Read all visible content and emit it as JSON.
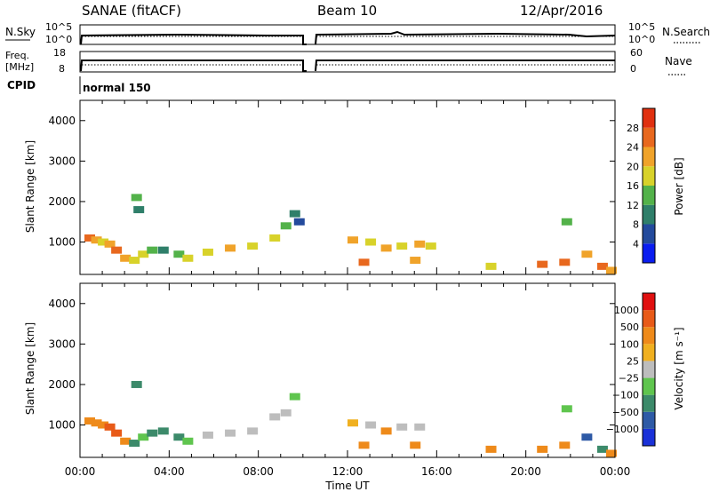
{
  "header": {
    "station": "SANAE (fitACF)",
    "beam": "Beam 10",
    "date": "12/Apr/2016"
  },
  "sky_panel": {
    "left_label": "N.Sky",
    "right_label": "N.Search",
    "tick_top_left": "10^5",
    "tick_bottom_left": "10^0",
    "tick_top_right": "10^5",
    "tick_bottom_right": "10^0"
  },
  "freq_panel": {
    "left_label_line1": "Freq.",
    "left_label_line2": "[MHz]",
    "right_label": "Nave",
    "left_ticks": [
      "18",
      "8"
    ],
    "right_ticks": [
      "60",
      "0"
    ]
  },
  "cpid_panel": {
    "label": "CPID",
    "mode_text": "normal 150"
  },
  "chart_data": [
    {
      "type": "heatmap",
      "name": "power",
      "ylabel": "Slant Range [km]",
      "yticks": [
        1000,
        2000,
        3000,
        4000
      ],
      "ylim": [
        200,
        4500
      ],
      "colorbar": {
        "label": "Power [dB]",
        "ticks": [
          "4",
          "8",
          "12",
          "16",
          "20",
          "24",
          "28"
        ],
        "colors": [
          "#0a1df0",
          "#234a9c",
          "#2f7f6a",
          "#53b24a",
          "#d8d22a",
          "#f0a32a",
          "#e8681e",
          "#e03010"
        ]
      },
      "cells": [
        [
          0.2,
          1100,
          6
        ],
        [
          0.5,
          1050,
          5
        ],
        [
          0.8,
          1000,
          4
        ],
        [
          1.1,
          950,
          5
        ],
        [
          1.4,
          800,
          6
        ],
        [
          1.8,
          600,
          5
        ],
        [
          2.2,
          550,
          4
        ],
        [
          2.6,
          700,
          4
        ],
        [
          3.0,
          800,
          3
        ],
        [
          3.5,
          800,
          2
        ],
        [
          4.2,
          700,
          3
        ],
        [
          4.6,
          600,
          4
        ],
        [
          2.3,
          2100,
          3
        ],
        [
          2.4,
          1800,
          2
        ],
        [
          5.5,
          750,
          4
        ],
        [
          6.5,
          850,
          5
        ],
        [
          7.5,
          900,
          4
        ],
        [
          8.5,
          1100,
          4
        ],
        [
          9.0,
          1400,
          3
        ],
        [
          9.4,
          1700,
          2
        ],
        [
          9.6,
          1500,
          1
        ],
        [
          12.0,
          1050,
          5
        ],
        [
          12.8,
          1000,
          4
        ],
        [
          13.5,
          850,
          5
        ],
        [
          14.2,
          900,
          4
        ],
        [
          15.0,
          950,
          5
        ],
        [
          12.5,
          500,
          6
        ],
        [
          14.8,
          550,
          5
        ],
        [
          15.5,
          900,
          4
        ],
        [
          18.2,
          400,
          4
        ],
        [
          20.5,
          450,
          6
        ],
        [
          21.5,
          500,
          6
        ],
        [
          22.5,
          700,
          5
        ],
        [
          23.2,
          400,
          6
        ],
        [
          23.6,
          300,
          5
        ],
        [
          21.6,
          1500,
          3
        ]
      ]
    },
    {
      "type": "heatmap",
      "name": "velocity",
      "ylabel": "Slant Range [km]",
      "yticks": [
        1000,
        2000,
        3000,
        4000
      ],
      "ylim": [
        200,
        4500
      ],
      "colorbar": {
        "label": "Velocity [m s⁻¹]",
        "ticks": [
          "1000",
          "500",
          "100",
          "25",
          "−25",
          "−100",
          "−500",
          "−1000"
        ],
        "colors": [
          "#1a31d8",
          "#2e5aa6",
          "#3c8a6a",
          "#5fc54e",
          "#bdbdbd",
          "#f0b020",
          "#ee8a1a",
          "#e85a18",
          "#e01010"
        ]
      },
      "cells": [
        [
          0.2,
          1100,
          6
        ],
        [
          0.5,
          1050,
          6
        ],
        [
          0.8,
          1000,
          6
        ],
        [
          1.1,
          950,
          7
        ],
        [
          1.4,
          800,
          7
        ],
        [
          1.8,
          600,
          6
        ],
        [
          2.2,
          550,
          2
        ],
        [
          2.6,
          700,
          3
        ],
        [
          3.0,
          800,
          2
        ],
        [
          3.5,
          850,
          2
        ],
        [
          4.2,
          700,
          2
        ],
        [
          4.6,
          600,
          3
        ],
        [
          2.3,
          2000,
          2
        ],
        [
          5.5,
          750,
          4
        ],
        [
          6.5,
          800,
          4
        ],
        [
          7.5,
          850,
          4
        ],
        [
          8.5,
          1200,
          4
        ],
        [
          9.0,
          1300,
          4
        ],
        [
          9.4,
          1700,
          3
        ],
        [
          12.0,
          1050,
          5
        ],
        [
          12.8,
          1000,
          4
        ],
        [
          13.5,
          850,
          6
        ],
        [
          14.2,
          950,
          4
        ],
        [
          15.0,
          950,
          4
        ],
        [
          12.5,
          500,
          6
        ],
        [
          14.8,
          500,
          6
        ],
        [
          18.2,
          400,
          6
        ],
        [
          20.5,
          400,
          6
        ],
        [
          21.5,
          500,
          6
        ],
        [
          22.5,
          700,
          1
        ],
        [
          23.2,
          400,
          2
        ],
        [
          23.6,
          300,
          6
        ],
        [
          21.6,
          1400,
          3
        ]
      ]
    }
  ],
  "x_axis": {
    "label": "Time UT",
    "ticks": [
      "00:00",
      "04:00",
      "08:00",
      "12:00",
      "16:00",
      "20:00",
      "00:00"
    ]
  }
}
